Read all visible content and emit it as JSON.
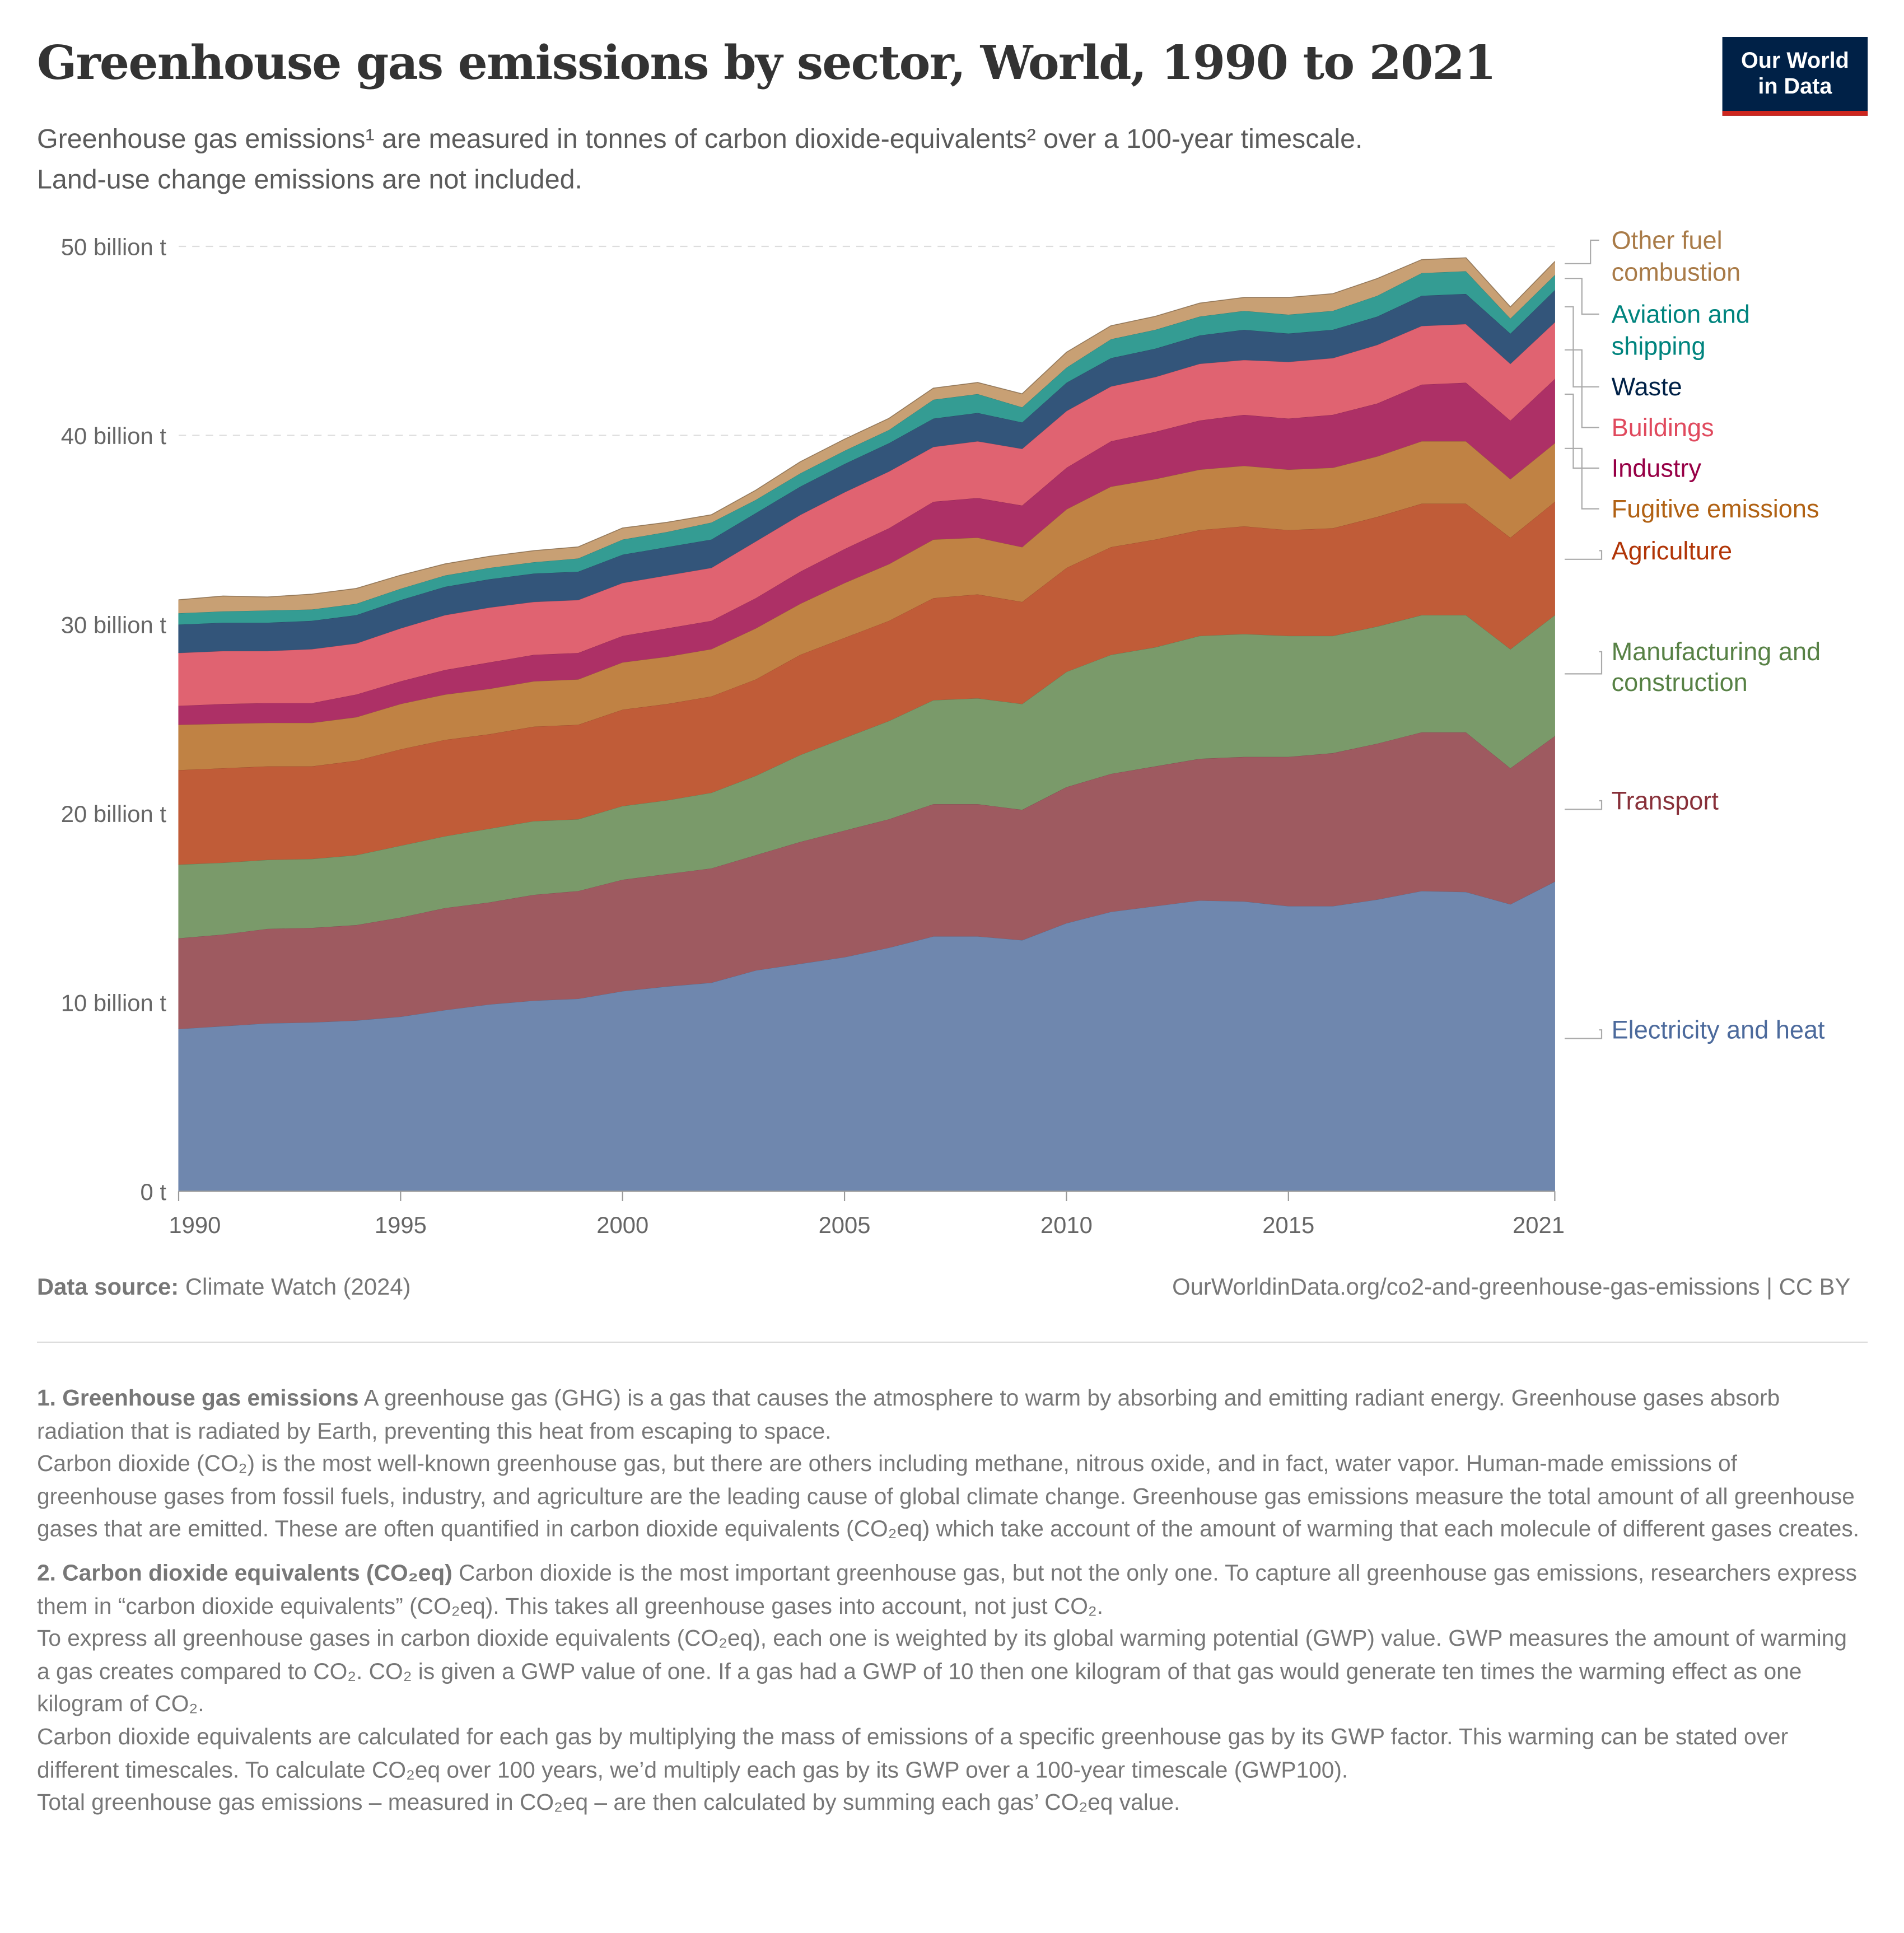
{
  "header": {
    "title": "Greenhouse gas emissions by sector, World, 1990 to 2021",
    "subtitle_line1": "Greenhouse gas emissions¹ are measured in tonnes of carbon dioxide-equivalents² over a 100-year timescale.",
    "subtitle_line2": "Land-use change emissions are not included.",
    "logo_line1": "Our World",
    "logo_line2": "in Data"
  },
  "chart_data": {
    "type": "area",
    "stacked": true,
    "title": "Greenhouse gas emissions by sector, World, 1990 to 2021",
    "xlabel": "",
    "ylabel": "",
    "ylim": [
      0,
      50
    ],
    "grid": "horizontal dashed",
    "legend": "right (inline labels)",
    "y_ticks": [
      "0 t",
      "10 billion t",
      "20 billion t",
      "30 billion t",
      "40 billion t",
      "50 billion t"
    ],
    "x_ticks": [
      "1990",
      "1995",
      "2000",
      "2005",
      "2010",
      "2015",
      "2021"
    ],
    "x": [
      1990,
      1991,
      1992,
      1993,
      1994,
      1995,
      1996,
      1997,
      1998,
      1999,
      2000,
      2001,
      2002,
      2003,
      2004,
      2005,
      2006,
      2007,
      2008,
      2009,
      2010,
      2011,
      2012,
      2013,
      2014,
      2015,
      2016,
      2017,
      2018,
      2019,
      2020,
      2021
    ],
    "unit": "billion t CO2eq",
    "series": [
      {
        "name": "Electricity and heat",
        "color": "#6f87ae",
        "label_color": "#4c6a9c",
        "values": [
          8.6,
          8.75,
          8.9,
          8.95,
          9.05,
          9.25,
          9.6,
          9.9,
          10.1,
          10.2,
          10.6,
          10.85,
          11.05,
          11.7,
          12.05,
          12.4,
          12.9,
          13.5,
          13.5,
          13.3,
          14.2,
          14.8,
          15.1,
          15.4,
          15.35,
          15.1,
          15.1,
          15.45,
          15.9,
          15.85,
          15.2,
          16.4
        ]
      },
      {
        "name": "Transport",
        "color": "#9e5a60",
        "label_color": "#883039",
        "values": [
          4.8,
          4.85,
          5.0,
          5.0,
          5.05,
          5.25,
          5.4,
          5.4,
          5.6,
          5.7,
          5.9,
          5.95,
          6.05,
          6.1,
          6.45,
          6.7,
          6.8,
          7.0,
          7.0,
          6.9,
          7.2,
          7.3,
          7.4,
          7.5,
          7.65,
          7.9,
          8.1,
          8.25,
          8.4,
          8.45,
          7.2,
          7.7
        ]
      },
      {
        "name": "Manufacturing and construction",
        "color": "#7a9a6a",
        "label_color": "#578145",
        "values": [
          3.9,
          3.8,
          3.65,
          3.65,
          3.7,
          3.8,
          3.8,
          3.9,
          3.9,
          3.8,
          3.9,
          3.9,
          4.0,
          4.2,
          4.6,
          4.9,
          5.2,
          5.5,
          5.6,
          5.6,
          6.1,
          6.3,
          6.3,
          6.5,
          6.5,
          6.4,
          6.2,
          6.2,
          6.2,
          6.2,
          6.3,
          6.4
        ]
      },
      {
        "name": "Agriculture",
        "color": "#c05c38",
        "label_color": "#b13507",
        "values": [
          5.0,
          5.0,
          4.95,
          4.9,
          5.0,
          5.1,
          5.1,
          5.0,
          5.0,
          5.0,
          5.1,
          5.1,
          5.1,
          5.1,
          5.3,
          5.3,
          5.3,
          5.4,
          5.5,
          5.4,
          5.5,
          5.7,
          5.7,
          5.6,
          5.7,
          5.6,
          5.7,
          5.8,
          5.9,
          5.9,
          5.9,
          6.0
        ]
      },
      {
        "name": "Fugitive emissions",
        "color": "#c08244",
        "label_color": "#b16214",
        "values": [
          2.4,
          2.35,
          2.3,
          2.3,
          2.3,
          2.4,
          2.4,
          2.4,
          2.4,
          2.4,
          2.5,
          2.5,
          2.5,
          2.7,
          2.7,
          2.9,
          3.0,
          3.1,
          3.0,
          2.9,
          3.1,
          3.2,
          3.2,
          3.2,
          3.2,
          3.2,
          3.2,
          3.2,
          3.3,
          3.3,
          3.1,
          3.1
        ]
      },
      {
        "name": "Industry",
        "color": "#ad3066",
        "label_color": "#970046",
        "values": [
          1.0,
          1.05,
          1.05,
          1.05,
          1.2,
          1.2,
          1.3,
          1.4,
          1.4,
          1.4,
          1.4,
          1.5,
          1.5,
          1.6,
          1.7,
          1.8,
          1.9,
          2.0,
          2.1,
          2.2,
          2.2,
          2.4,
          2.5,
          2.6,
          2.7,
          2.7,
          2.8,
          2.8,
          3.0,
          3.1,
          3.1,
          3.4
        ]
      },
      {
        "name": "Buildings",
        "color": "#e06371",
        "label_color": "#e04a5e",
        "values": [
          2.8,
          2.8,
          2.75,
          2.85,
          2.7,
          2.8,
          2.9,
          2.9,
          2.8,
          2.8,
          2.8,
          2.8,
          2.8,
          3.0,
          3.0,
          3.0,
          3.0,
          2.9,
          3.0,
          3.0,
          3.0,
          2.9,
          2.9,
          3.0,
          2.9,
          3.0,
          3.0,
          3.1,
          3.1,
          3.1,
          3.0,
          3.0
        ]
      },
      {
        "name": "Waste",
        "color": "#33557a",
        "label_color": "#002147",
        "values": [
          1.5,
          1.5,
          1.5,
          1.5,
          1.5,
          1.5,
          1.5,
          1.5,
          1.5,
          1.5,
          1.5,
          1.5,
          1.5,
          1.5,
          1.5,
          1.5,
          1.5,
          1.5,
          1.5,
          1.4,
          1.5,
          1.5,
          1.5,
          1.5,
          1.6,
          1.5,
          1.5,
          1.5,
          1.6,
          1.6,
          1.6,
          1.7
        ]
      },
      {
        "name": "Aviation and shipping",
        "color": "#349c93",
        "label_color": "#00847e",
        "values": [
          0.6,
          0.6,
          0.65,
          0.6,
          0.6,
          0.6,
          0.6,
          0.6,
          0.6,
          0.7,
          0.8,
          0.8,
          0.9,
          0.7,
          0.7,
          0.7,
          0.7,
          1.0,
          1.0,
          0.8,
          0.8,
          1.0,
          1.0,
          1.0,
          1.0,
          1.0,
          1.0,
          1.1,
          1.2,
          1.2,
          0.8,
          0.8
        ]
      },
      {
        "name": "Other fuel combustion",
        "color": "#c8a074",
        "label_color": "#a97b48",
        "values": [
          0.7,
          0.8,
          0.7,
          0.8,
          0.8,
          0.7,
          0.6,
          0.6,
          0.6,
          0.6,
          0.6,
          0.5,
          0.4,
          0.5,
          0.6,
          0.6,
          0.6,
          0.6,
          0.6,
          0.7,
          0.8,
          0.7,
          0.7,
          0.7,
          0.7,
          0.9,
          0.9,
          0.9,
          0.7,
          0.7,
          0.6,
          0.7
        ]
      }
    ],
    "legend_labels": {
      "other": [
        "Other fuel",
        "combustion"
      ],
      "aviation": [
        "Aviation and",
        "shipping"
      ],
      "waste": [
        "Waste"
      ],
      "buildings": [
        "Buildings"
      ],
      "industry": [
        "Industry"
      ],
      "fugitive": [
        "Fugitive emissions"
      ],
      "agriculture": [
        "Agriculture"
      ],
      "manufacturing": [
        "Manufacturing and",
        "construction"
      ],
      "transport": [
        "Transport"
      ],
      "electricity": [
        "Electricity and heat"
      ]
    }
  },
  "footer": {
    "source_label": "Data source:",
    "source_value": " Climate Watch (2024)",
    "url": "OurWorldinData.org/co2-and-greenhouse-gas-emissions | CC BY"
  },
  "notes": {
    "n1_title": "1. Greenhouse gas emissions",
    "n1_body": " A greenhouse gas (GHG) is a gas that causes the atmosphere to warm by absorbing and emitting radiant energy. Greenhouse gases absorb radiation that is radiated by Earth, preventing this heat from escaping to space.",
    "n1_p2": "Carbon dioxide (CO₂) is the most well-known greenhouse gas, but there are others including methane, nitrous oxide, and in fact, water vapor. Human-made emissions of greenhouse gases from fossil fuels, industry, and agriculture are the leading cause of global climate change. Greenhouse gas emissions measure the total amount of all greenhouse gases that are emitted. These are often quantified in carbon dioxide equivalents (CO₂eq) which take account of the amount of warming that each molecule of different gases creates.",
    "n2_title": "2. Carbon dioxide equivalents (CO₂eq)",
    "n2_body": " Carbon dioxide is the most important greenhouse gas, but not the only one. To capture all greenhouse gas emissions, researchers express them in “carbon dioxide equivalents” (CO₂eq). This takes all greenhouse gases into account, not just CO₂.",
    "n2_p2": "To express all greenhouse gases in carbon dioxide equivalents (CO₂eq), each one is weighted by its global warming potential (GWP) value. GWP measures the amount of warming a gas creates compared to CO₂. CO₂ is given a GWP value of one. If a gas had a GWP of 10 then one kilogram of that gas would generate ten times the warming effect as one kilogram of CO₂.",
    "n2_p3": "Carbon dioxide equivalents are calculated for each gas by multiplying the mass of emissions of a specific greenhouse gas by its GWP factor. This warming can be stated over different timescales. To calculate CO₂eq over 100 years, we’d multiply each gas by its GWP over a 100-year timescale (GWP100).",
    "n2_p4": "Total greenhouse gas emissions – measured in CO₂eq – are then calculated by summing each gas’ CO₂eq value."
  }
}
